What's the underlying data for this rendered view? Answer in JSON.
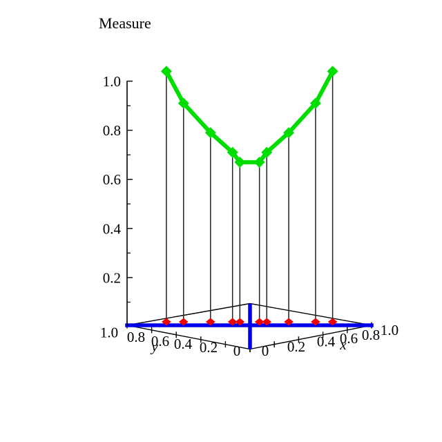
{
  "title": "Measure",
  "colors": {
    "curve": "#00dd00",
    "floor_markers": "#ee0000",
    "diagonals": "#0000ee",
    "frame": "#000000",
    "drop_lines": "#222222",
    "background": "#ffffff",
    "text": "#000000"
  },
  "axes": {
    "z": {
      "title": "Measure",
      "tick_labels": [
        "1.0",
        "0.8",
        "0.6",
        "0.4",
        "0.2"
      ],
      "tick_values": [
        1.0,
        0.8,
        0.6,
        0.4,
        0.2
      ],
      "minor_tick_values": [
        0.9,
        0.7,
        0.5,
        0.3,
        0.1
      ],
      "range": [
        0,
        1.04
      ]
    },
    "x": {
      "label": "x",
      "tick_labels": [
        "0",
        "0.2",
        "0.4",
        "0.6",
        "0.8",
        "1.0"
      ],
      "tick_values": [
        0,
        0.2,
        0.4,
        0.6,
        0.8,
        1.0
      ],
      "range": [
        0,
        1
      ]
    },
    "y": {
      "label": "y",
      "tick_labels": [
        "1.0",
        "0.8",
        "0.6",
        "0.4",
        "0.2",
        "0"
      ],
      "tick_values": [
        1.0,
        0.8,
        0.6,
        0.4,
        0.2,
        0
      ],
      "range": [
        0,
        1
      ]
    }
  },
  "chart_data": {
    "type": "line",
    "subtype": "3d-curve-over-base-diagonal",
    "title": "Measure",
    "description": "Measure values plotted above the base-plane diagonal x + y = 1. Green diamonds: curve points; red diamonds: projections of the points on the base plane; blue lines: base-plane diagonals x+y=1 and x=y; thin vertical drop lines connect curve points to their projections.",
    "points": [
      {
        "x": 0.16,
        "y": 0.84,
        "measure": 1.04
      },
      {
        "x": 0.23,
        "y": 0.77,
        "measure": 0.91
      },
      {
        "x": 0.34,
        "y": 0.66,
        "measure": 0.79
      },
      {
        "x": 0.43,
        "y": 0.57,
        "measure": 0.71
      },
      {
        "x": 0.46,
        "y": 0.54,
        "measure": 0.67
      },
      {
        "x": 0.54,
        "y": 0.46,
        "measure": 0.67
      },
      {
        "x": 0.57,
        "y": 0.43,
        "measure": 0.71
      },
      {
        "x": 0.66,
        "y": 0.34,
        "measure": 0.79
      },
      {
        "x": 0.77,
        "y": 0.23,
        "measure": 0.91
      },
      {
        "x": 0.84,
        "y": 0.16,
        "measure": 1.04
      }
    ],
    "floor_lines": [
      {
        "name": "diagonal-x-plus-y-equals-1",
        "from": {
          "x": 0,
          "y": 1
        },
        "to": {
          "x": 1,
          "y": 0
        }
      },
      {
        "name": "diagonal-x-equals-y",
        "from": {
          "x": 0,
          "y": 0
        },
        "to": {
          "x": 1,
          "y": 1
        }
      }
    ],
    "xlim": [
      0,
      1.0
    ],
    "ylim": [
      0,
      1.0
    ],
    "zlim": [
      0,
      1.0
    ],
    "grid": false,
    "legend": false
  }
}
